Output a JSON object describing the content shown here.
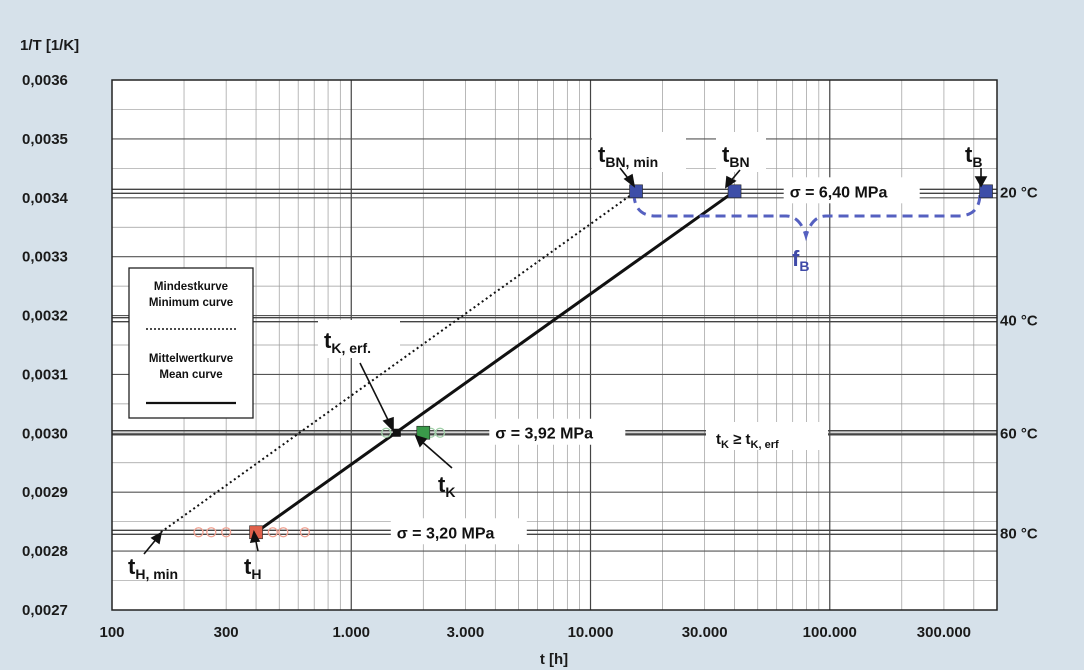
{
  "chart_data": {
    "type": "line",
    "x_scale": "log",
    "y_scale": "linear",
    "ylabel": "1/T [1/K]",
    "xlabel": "t [h]",
    "xlim": [
      100,
      500000
    ],
    "ylim": [
      0.0027,
      0.0036
    ],
    "y_ticks": [
      {
        "value": 0.0027,
        "label": "0,0027"
      },
      {
        "value": 0.0028,
        "label": "0,0028"
      },
      {
        "value": 0.0029,
        "label": "0,0029"
      },
      {
        "value": 0.003,
        "label": "0,0030"
      },
      {
        "value": 0.0031,
        "label": "0,0031"
      },
      {
        "value": 0.0032,
        "label": "0,0032"
      },
      {
        "value": 0.0033,
        "label": "0,0033"
      },
      {
        "value": 0.0034,
        "label": "0,0034"
      },
      {
        "value": 0.0035,
        "label": "0,0035"
      },
      {
        "value": 0.0036,
        "label": "0,0036"
      }
    ],
    "x_ticks": [
      {
        "value": 100,
        "label": "100"
      },
      {
        "value": 300,
        "label": "300"
      },
      {
        "value": 1000,
        "label": "1.000"
      },
      {
        "value": 3000,
        "label": "3.000"
      },
      {
        "value": 10000,
        "label": "10.000"
      },
      {
        "value": 30000,
        "label": "30.000"
      },
      {
        "value": 100000,
        "label": "100.000"
      },
      {
        "value": 300000,
        "label": "300.000"
      }
    ],
    "grid": true,
    "temperature_lines": [
      {
        "y": 0.003411,
        "label": "20 °C"
      },
      {
        "y": 0.003193,
        "label": "40 °C"
      },
      {
        "y": 0.003001,
        "label": "60 °C"
      },
      {
        "y": 0.002832,
        "label": "80 °C"
      }
    ],
    "series": [
      {
        "style": "dotted",
        "points": [
          {
            "x": 160,
            "y": 0.002832
          },
          {
            "x": 15500,
            "y": 0.003411
          }
        ]
      },
      {
        "style": "solid",
        "points": [
          {
            "x": 400,
            "y": 0.002832
          },
          {
            "x": 40000,
            "y": 0.003411
          }
        ]
      }
    ],
    "markers": [
      {
        "x": 15500,
        "y": 0.003411,
        "color": "#3d4ea8"
      },
      {
        "x": 40000,
        "y": 0.003411,
        "color": "#3d4ea8"
      },
      {
        "x": 450000,
        "y": 0.003411,
        "color": "#3d4ea8"
      },
      {
        "x": 400,
        "y": 0.002832,
        "color": "#e0604a"
      },
      {
        "x": 2000,
        "y": 0.003001,
        "color": "#3a9a4a"
      }
    ],
    "faint_points": [
      {
        "x": 230,
        "y": 0.002832,
        "color": "#f0a090"
      },
      {
        "x": 260,
        "y": 0.002832,
        "color": "#f0a090"
      },
      {
        "x": 300,
        "y": 0.002832,
        "color": "#f0a090"
      },
      {
        "x": 470,
        "y": 0.002832,
        "color": "#f0a090"
      },
      {
        "x": 520,
        "y": 0.002832,
        "color": "#f0a090"
      },
      {
        "x": 640,
        "y": 0.002832,
        "color": "#f0a090"
      },
      {
        "x": 1400,
        "y": 0.003001,
        "color": "#a0cfa8"
      },
      {
        "x": 2150,
        "y": 0.003001,
        "color": "#a0cfa8"
      },
      {
        "x": 2350,
        "y": 0.003001,
        "color": "#a0cfa8"
      }
    ],
    "small_marker": {
      "x": 1550,
      "y": 0.003001,
      "color": "#111111"
    },
    "stress_labels": [
      {
        "text": "σ = 6,40 MPa",
        "x": 68000,
        "y": 0.003411
      },
      {
        "text": "σ = 3,92 MPa",
        "x": 4000,
        "y": 0.003001
      },
      {
        "text": "σ = 3,20 MPa",
        "x": 1550,
        "y": 0.002832
      }
    ],
    "condition_label": {
      "text": "t",
      "sub": "K",
      "rest": " ≥ t",
      "sub2": "K, erf",
      "x": 33000,
      "y": 0.003001
    },
    "point_labels": [
      {
        "main": "t",
        "sub": "BN, min"
      },
      {
        "main": "t",
        "sub": "BN"
      },
      {
        "main": "t",
        "sub": "B"
      },
      {
        "main": "t",
        "sub": "K, erf."
      },
      {
        "main": "t",
        "sub": "K"
      },
      {
        "main": "t",
        "sub": "H, min"
      },
      {
        "main": "t",
        "sub": "H"
      },
      {
        "main": "f",
        "sub": "B"
      }
    ],
    "legend": {
      "placement": "left",
      "minimum_de": "Mindestkurve",
      "minimum_en": "Minimum curve",
      "mean_de": "Mittelwertkurve",
      "mean_en": "Mean curve"
    }
  }
}
